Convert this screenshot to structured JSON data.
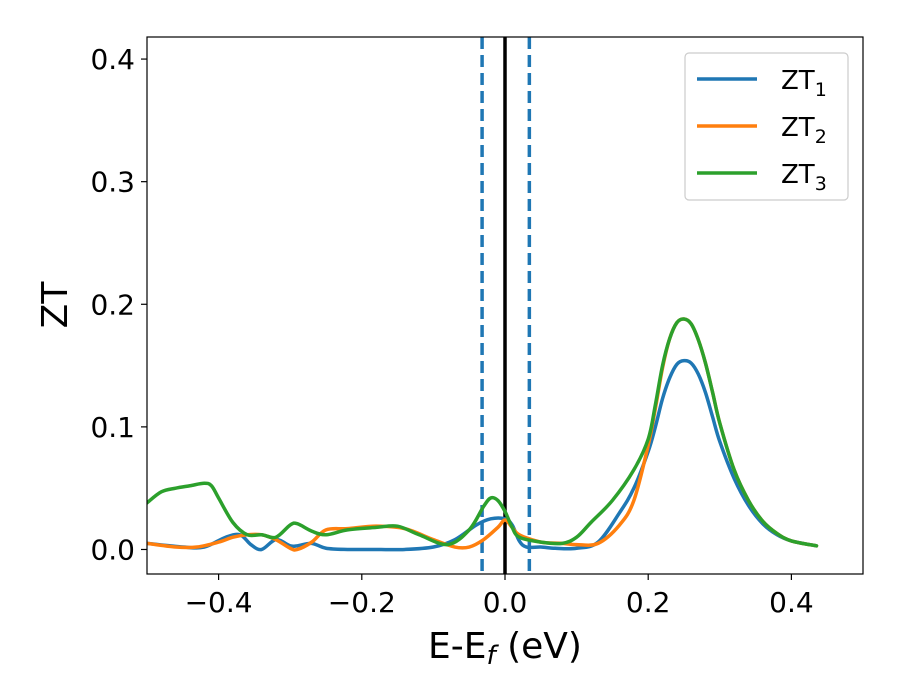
{
  "chart_data": {
    "type": "line",
    "xlabel": "E-E",
    "xlabel_sub": "f",
    "xlabel_unit": " (eV)",
    "ylabel": "ZT",
    "xlim": [
      -0.5,
      0.5
    ],
    "ylim": [
      -0.02,
      0.418
    ],
    "xticks": [
      -0.4,
      -0.2,
      0.0,
      0.2,
      0.4
    ],
    "xtick_labels": [
      "−0.4",
      "−0.2",
      "0.0",
      "0.2",
      "0.4"
    ],
    "yticks": [
      0.0,
      0.1,
      0.2,
      0.3,
      0.4
    ],
    "ytick_labels": [
      "0.0",
      "0.1",
      "0.2",
      "0.3",
      "0.4"
    ],
    "grid": false,
    "legend_position": "top-right",
    "vlines": [
      {
        "x": 0.0,
        "style": "solid",
        "color": "#000000"
      },
      {
        "x": -0.032,
        "style": "dashed",
        "color": "#1f77b4"
      },
      {
        "x": 0.034,
        "style": "dashed",
        "color": "#1f77b4"
      }
    ],
    "series": [
      {
        "name": "ZT",
        "sub": "1",
        "color": "#1f77b4",
        "x": [
          -0.5,
          -0.45,
          -0.42,
          -0.39,
          -0.37,
          -0.355,
          -0.34,
          -0.32,
          -0.3,
          -0.29,
          -0.27,
          -0.25,
          -0.22,
          -0.18,
          -0.14,
          -0.1,
          -0.07,
          -0.04,
          -0.02,
          0.0,
          0.01,
          0.02,
          0.03,
          0.05,
          0.07,
          0.1,
          0.13,
          0.16,
          0.18,
          0.2,
          0.21,
          0.22,
          0.23,
          0.24,
          0.25,
          0.26,
          0.27,
          0.28,
          0.29,
          0.3,
          0.32,
          0.34,
          0.36,
          0.38,
          0.4,
          0.435
        ],
        "y": [
          0.005,
          0.002,
          0.002,
          0.01,
          0.012,
          0.004,
          0.0,
          0.008,
          0.003,
          0.003,
          0.005,
          0.001,
          0.0,
          0.0,
          0.0,
          0.002,
          0.008,
          0.02,
          0.025,
          0.025,
          0.02,
          0.007,
          0.002,
          0.002,
          0.001,
          0.001,
          0.006,
          0.03,
          0.05,
          0.08,
          0.1,
          0.123,
          0.14,
          0.151,
          0.154,
          0.152,
          0.143,
          0.128,
          0.108,
          0.088,
          0.058,
          0.036,
          0.021,
          0.012,
          0.007,
          0.003
        ]
      },
      {
        "name": "ZT",
        "sub": "2",
        "color": "#ff7f0e",
        "x": [
          -0.5,
          -0.46,
          -0.43,
          -0.4,
          -0.38,
          -0.36,
          -0.34,
          -0.32,
          -0.3,
          -0.29,
          -0.27,
          -0.25,
          -0.22,
          -0.18,
          -0.14,
          -0.1,
          -0.07,
          -0.05,
          -0.03,
          -0.01,
          0.0,
          0.01,
          0.02,
          0.05,
          0.08,
          0.1,
          0.13,
          0.16,
          0.18,
          0.2,
          0.21,
          0.22,
          0.23,
          0.24,
          0.25,
          0.26,
          0.27,
          0.28,
          0.29,
          0.3,
          0.32,
          0.34,
          0.36,
          0.38,
          0.4,
          0.435
        ],
        "y": [
          0.005,
          0.002,
          0.002,
          0.006,
          0.01,
          0.012,
          0.012,
          0.008,
          0.001,
          0.0,
          0.006,
          0.016,
          0.017,
          0.019,
          0.017,
          0.008,
          0.002,
          0.002,
          0.008,
          0.018,
          0.024,
          0.018,
          0.012,
          0.006,
          0.005,
          0.004,
          0.005,
          0.02,
          0.04,
          0.085,
          0.115,
          0.148,
          0.172,
          0.185,
          0.188,
          0.184,
          0.171,
          0.152,
          0.128,
          0.103,
          0.065,
          0.04,
          0.023,
          0.013,
          0.007,
          0.003
        ]
      },
      {
        "name": "ZT",
        "sub": "3",
        "color": "#2ca02c",
        "x": [
          -0.5,
          -0.48,
          -0.46,
          -0.44,
          -0.42,
          -0.41,
          -0.4,
          -0.38,
          -0.36,
          -0.34,
          -0.32,
          -0.3,
          -0.29,
          -0.27,
          -0.25,
          -0.22,
          -0.18,
          -0.15,
          -0.12,
          -0.08,
          -0.05,
          -0.03,
          -0.02,
          -0.01,
          0.0,
          0.01,
          0.02,
          0.05,
          0.08,
          0.1,
          0.12,
          0.15,
          0.18,
          0.2,
          0.21,
          0.22,
          0.23,
          0.24,
          0.25,
          0.26,
          0.27,
          0.28,
          0.29,
          0.3,
          0.32,
          0.34,
          0.36,
          0.38,
          0.4,
          0.435
        ],
        "y": [
          0.038,
          0.047,
          0.05,
          0.052,
          0.054,
          0.052,
          0.042,
          0.022,
          0.012,
          0.012,
          0.01,
          0.02,
          0.021,
          0.015,
          0.012,
          0.016,
          0.018,
          0.019,
          0.012,
          0.004,
          0.016,
          0.035,
          0.042,
          0.04,
          0.031,
          0.018,
          0.01,
          0.006,
          0.005,
          0.01,
          0.022,
          0.04,
          0.065,
          0.09,
          0.118,
          0.15,
          0.172,
          0.185,
          0.188,
          0.184,
          0.171,
          0.152,
          0.128,
          0.103,
          0.065,
          0.04,
          0.023,
          0.013,
          0.007,
          0.003
        ]
      }
    ]
  }
}
